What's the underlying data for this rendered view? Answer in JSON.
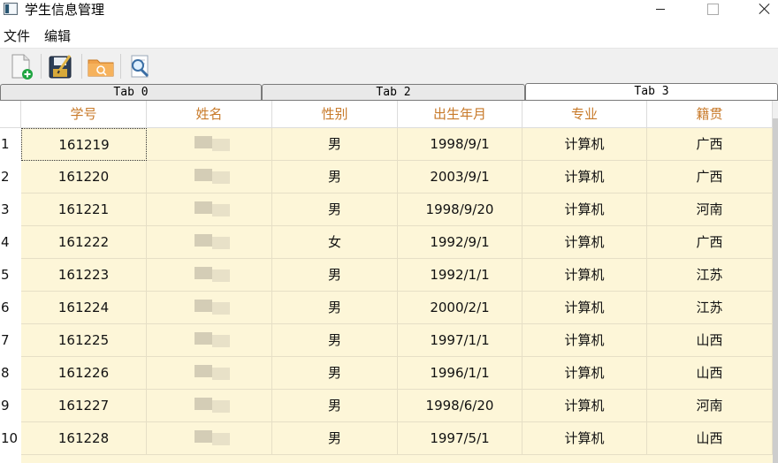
{
  "window": {
    "title": "学生信息管理"
  },
  "menu": [
    {
      "label": "文件"
    },
    {
      "label": "编辑"
    }
  ],
  "toolbar": [
    {
      "name": "new-file-icon"
    },
    {
      "name": "save-icon"
    },
    {
      "name": "open-folder-icon"
    },
    {
      "name": "search-icon"
    }
  ],
  "tabs": [
    {
      "label": "Tab 0",
      "active": false
    },
    {
      "label": "Tab 2",
      "active": false
    },
    {
      "label": "Tab 3",
      "active": true
    }
  ],
  "table": {
    "columns": [
      "学号",
      "姓名",
      "性别",
      "出生年月",
      "专业",
      "籍贯"
    ],
    "rows": [
      {
        "no": "1",
        "id": "161219",
        "name": "",
        "gender": "男",
        "birth": "1998/9/1",
        "major": "计算机",
        "origin": "广西"
      },
      {
        "no": "2",
        "id": "161220",
        "name": "",
        "gender": "男",
        "birth": "2003/9/1",
        "major": "计算机",
        "origin": "广西"
      },
      {
        "no": "3",
        "id": "161221",
        "name": "",
        "gender": "男",
        "birth": "1998/9/20",
        "major": "计算机",
        "origin": "河南"
      },
      {
        "no": "4",
        "id": "161222",
        "name": "",
        "gender": "女",
        "birth": "1992/9/1",
        "major": "计算机",
        "origin": "广西"
      },
      {
        "no": "5",
        "id": "161223",
        "name": "",
        "gender": "男",
        "birth": "1992/1/1",
        "major": "计算机",
        "origin": "江苏"
      },
      {
        "no": "6",
        "id": "161224",
        "name": "",
        "gender": "男",
        "birth": "2000/2/1",
        "major": "计算机",
        "origin": "江苏"
      },
      {
        "no": "7",
        "id": "161225",
        "name": "",
        "gender": "男",
        "birth": "1997/1/1",
        "major": "计算机",
        "origin": "山西"
      },
      {
        "no": "8",
        "id": "161226",
        "name": "",
        "gender": "男",
        "birth": "1996/1/1",
        "major": "计算机",
        "origin": "山西"
      },
      {
        "no": "9",
        "id": "161227",
        "name": "",
        "gender": "男",
        "birth": "1998/6/20",
        "major": "计算机",
        "origin": "河南"
      },
      {
        "no": "10",
        "id": "161228",
        "name": "",
        "gender": "男",
        "birth": "1997/5/1",
        "major": "计算机",
        "origin": "山西"
      }
    ]
  },
  "colors": {
    "header_text": "#c87a2a",
    "row_bg": "#fdf6d8",
    "grid_line": "#e6dfc6"
  }
}
